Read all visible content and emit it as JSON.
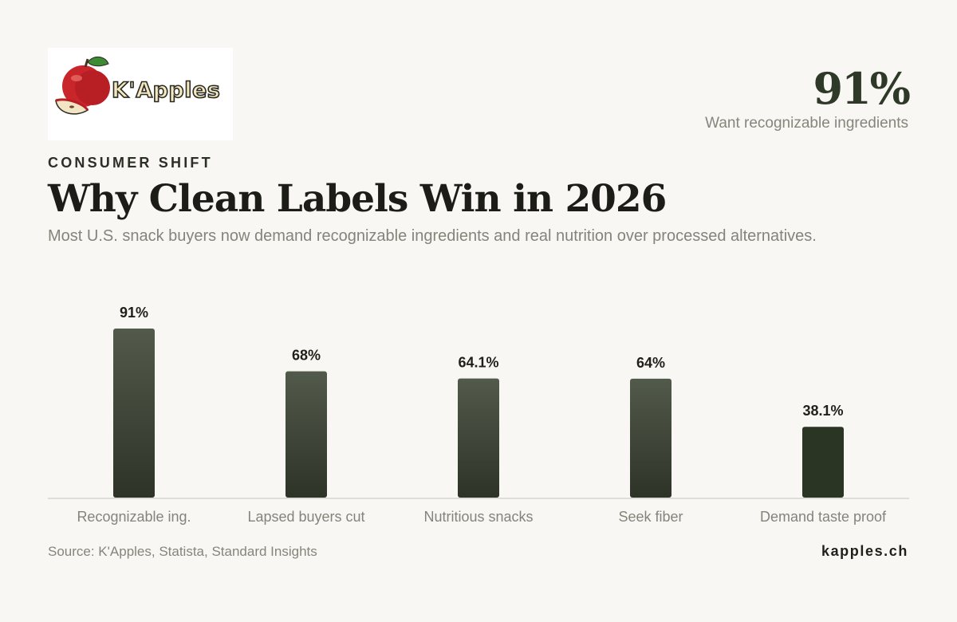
{
  "brand": {
    "logo_text": "K'Apples",
    "site": "kapples.ch"
  },
  "headline_stat": {
    "value": "91%",
    "caption": "Want recognizable ingredients"
  },
  "eyebrow": "CONSUMER SHIFT",
  "title": "Why Clean Labels Win in 2026",
  "subtitle": "Most U.S. snack buyers now demand recognizable ingredients and real nutrition over processed alternatives.",
  "source": "Source: K'Apples, Statista, Standard Insights",
  "colors": {
    "background": "#f8f7f3",
    "bar_top": "#525a4b",
    "bar_bottom": "#2e3328",
    "bar_highlight": "#2b3523",
    "axis": "#d9d6cf"
  },
  "chart_data": {
    "type": "bar",
    "categories": [
      "Recognizable ing.",
      "Lapsed buyers cut",
      "Nutritious snacks",
      "Seek fiber",
      "Demand taste proof"
    ],
    "values": [
      91,
      68,
      64.1,
      64,
      38.1
    ],
    "value_labels": [
      "91%",
      "68%",
      "64.1%",
      "64%",
      "38.1%"
    ],
    "ylim": [
      0,
      91
    ],
    "grid": false,
    "legend": "none"
  }
}
